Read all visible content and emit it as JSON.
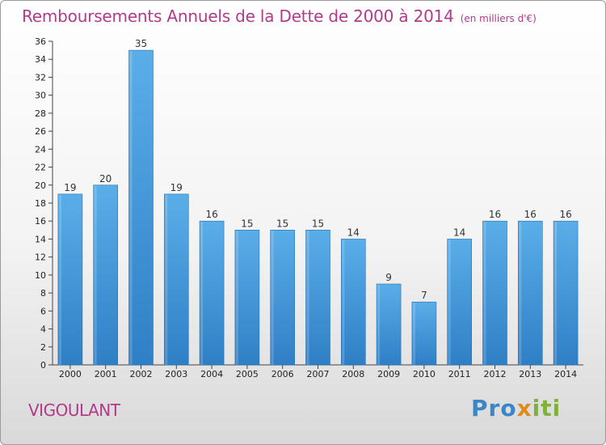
{
  "header": {
    "title": "Remboursements Annuels de la Dette de 2000 à 2014",
    "unit": "(en milliers d'€)"
  },
  "footer": {
    "commune": "VIGOULANT",
    "logo_letters": [
      {
        "char": "P",
        "color": "#3a86c8"
      },
      {
        "char": "r",
        "color": "#3a86c8"
      },
      {
        "char": "o",
        "color": "#3a86c8"
      },
      {
        "char": "x",
        "color": "#e08a1e"
      },
      {
        "char": "i",
        "color": "#7fb23a"
      },
      {
        "char": "t",
        "color": "#7fb23a"
      },
      {
        "char": "i",
        "color": "#7fb23a"
      }
    ]
  },
  "colors": {
    "bar_top": "#5aaee8",
    "bar_bottom": "#2f7fc6",
    "bar_edge": "#2a70b0",
    "title": "#b23a8a"
  },
  "chart_data": {
    "type": "bar",
    "categories": [
      "2000",
      "2001",
      "2002",
      "2003",
      "2004",
      "2005",
      "2006",
      "2007",
      "2008",
      "2009",
      "2010",
      "2011",
      "2012",
      "2013",
      "2014"
    ],
    "values": [
      19,
      20,
      35,
      19,
      16,
      15,
      15,
      15,
      14,
      9,
      7,
      14,
      16,
      16,
      16
    ],
    "ylim": [
      0,
      36
    ],
    "yticks": [
      0,
      2,
      4,
      6,
      8,
      10,
      12,
      14,
      16,
      18,
      20,
      22,
      24,
      26,
      28,
      30,
      32,
      34,
      36
    ],
    "grid": false,
    "data_labels": true
  }
}
